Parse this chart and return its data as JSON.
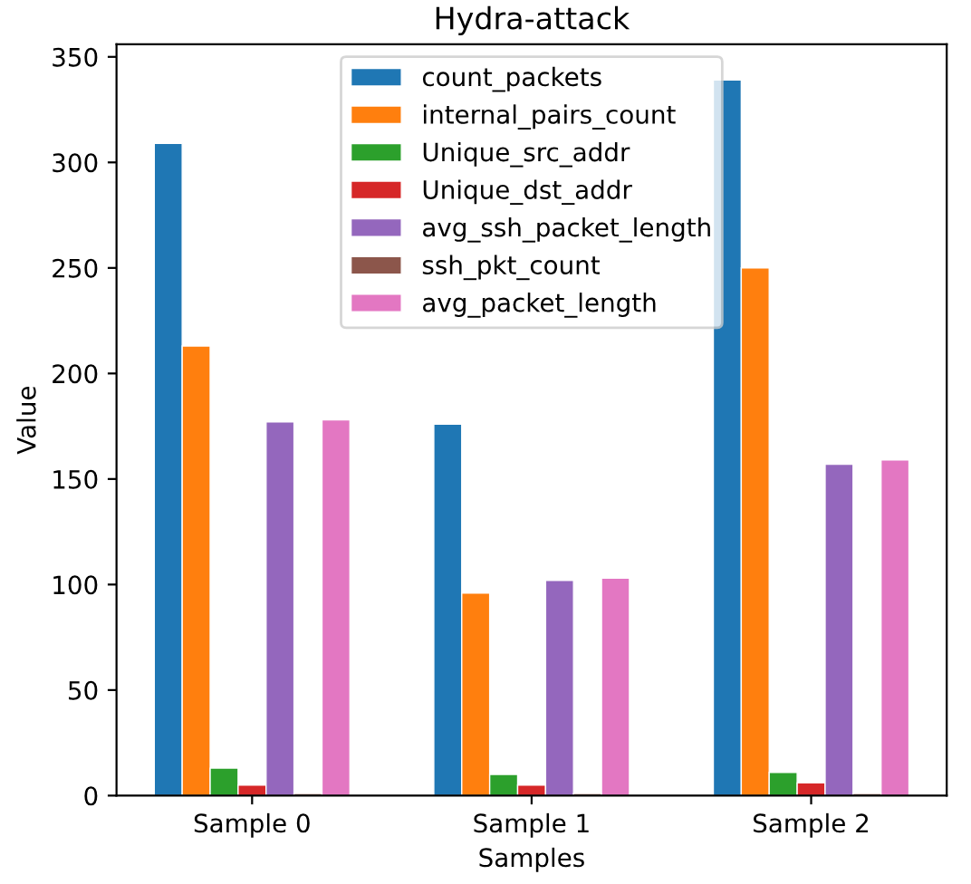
{
  "chart_data": {
    "type": "bar",
    "title": "Hydra-attack",
    "xlabel": "Samples",
    "ylabel": "Value",
    "categories": [
      "Sample 0",
      "Sample 1",
      "Sample 2"
    ],
    "series": [
      {
        "name": "count_packets",
        "color": "#1f77b4",
        "values": [
          309,
          176,
          339
        ]
      },
      {
        "name": "internal_pairs_count",
        "color": "#ff7f0e",
        "values": [
          213,
          96,
          250
        ]
      },
      {
        "name": "Unique_src_addr",
        "color": "#2ca02c",
        "values": [
          13,
          10,
          11
        ]
      },
      {
        "name": "Unique_dst_addr",
        "color": "#d62728",
        "values": [
          5,
          5,
          6
        ]
      },
      {
        "name": "avg_ssh_packet_length",
        "color": "#9467bd",
        "values": [
          177,
          102,
          157
        ]
      },
      {
        "name": "ssh_pkt_count",
        "color": "#8c564b",
        "values": [
          1,
          1,
          1
        ]
      },
      {
        "name": "avg_packet_length",
        "color": "#e377c2",
        "values": [
          178,
          103,
          159
        ]
      }
    ],
    "ylim": [
      0,
      356
    ],
    "yticks": [
      0,
      50,
      100,
      150,
      200,
      250,
      300,
      350
    ],
    "grid": false,
    "legend": "top"
  }
}
